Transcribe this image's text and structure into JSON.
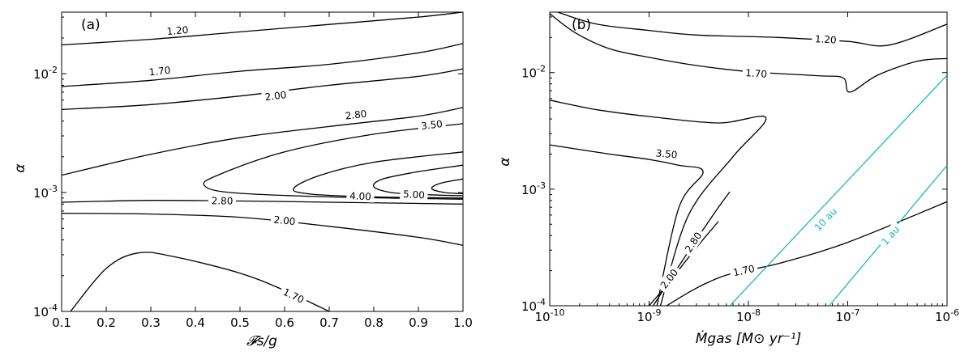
{
  "chart_data": [
    {
      "type": "line",
      "panel_label": "(a)",
      "xlabel": "𝓕s/g",
      "ylabel": "α",
      "x_scale": "linear",
      "y_scale": "log",
      "xlim": [
        0.1,
        1.0
      ],
      "ylim": [
        0.0001,
        0.033
      ],
      "x_ticks": [
        "0.1",
        "0.2",
        "0.3",
        "0.4",
        "0.5",
        "0.6",
        "0.7",
        "0.8",
        "0.9",
        "1.0"
      ],
      "y_ticks": [
        "10^-4",
        "10^-3",
        "10^-2"
      ],
      "series": [
        {
          "name": "1.20",
          "color": "#000000",
          "x": [
            0.1,
            0.3,
            0.5,
            0.7,
            0.9,
            1.0
          ],
          "y": [
            0.0175,
            0.0195,
            0.0225,
            0.026,
            0.03,
            0.033
          ],
          "label_at": [
            0.36,
            0.023
          ]
        },
        {
          "name": "1.70",
          "color": "#000000",
          "x": [
            0.1,
            0.3,
            0.5,
            0.7,
            0.9,
            1.0
          ],
          "y": [
            0.0078,
            0.0088,
            0.0105,
            0.012,
            0.015,
            0.018
          ],
          "label_at": [
            0.32,
            0.0105
          ]
        },
        {
          "name": "2.00",
          "color": "#000000",
          "x": [
            0.1,
            0.3,
            0.5,
            0.7,
            0.9,
            1.0
          ],
          "y": [
            0.005,
            0.0055,
            0.0065,
            0.008,
            0.0095,
            0.011
          ],
          "label_at": [
            0.58,
            0.0065
          ]
        },
        {
          "name": "2.80",
          "color": "#000000",
          "x": [
            0.1,
            0.3,
            0.5,
            0.7,
            0.9,
            1.0
          ],
          "y": [
            0.0014,
            0.0021,
            0.0029,
            0.0036,
            0.0044,
            0.0052
          ],
          "label_at": [
            0.76,
            0.0045
          ]
        },
        {
          "name": "3.50",
          "color": "#000000",
          "x": [
            1.0,
            0.8,
            0.6,
            0.45,
            0.42,
            0.48,
            0.7,
            1.0
          ],
          "y": [
            0.0038,
            0.0031,
            0.0022,
            0.0014,
            0.00115,
            0.001,
            0.00092,
            0.00088
          ],
          "label_at": [
            0.93,
            0.0037
          ]
        },
        {
          "name": "2.80",
          "color": "#000000",
          "x": [
            0.1,
            0.3,
            0.5,
            0.7,
            0.9,
            1.0
          ],
          "y": [
            0.00083,
            0.00086,
            0.00085,
            0.00083,
            0.00081,
            0.0008
          ],
          "label_at": [
            0.46,
            0.00085
          ]
        },
        {
          "name": "4.00",
          "color": "#000000",
          "x": [
            1.0,
            0.8,
            0.68,
            0.62,
            0.66,
            0.8,
            1.0
          ],
          "y": [
            0.0022,
            0.0018,
            0.0014,
            0.00108,
            0.00097,
            0.00092,
            0.0009
          ],
          "label_at": [
            0.77,
            0.00093
          ]
        },
        {
          "name": "5.00",
          "color": "#000000",
          "x": [
            1.0,
            0.9,
            0.82,
            0.8,
            0.84,
            0.92,
            1.0
          ],
          "y": [
            0.0017,
            0.0015,
            0.0013,
            0.00112,
            0.001,
            0.00096,
            0.00094
          ],
          "label_at": [
            0.89,
            0.00096
          ]
        },
        {
          "name": "",
          "color": "#000000",
          "x": [
            1.0,
            0.95,
            0.93,
            0.96,
            1.0
          ],
          "y": [
            0.0013,
            0.0012,
            0.00108,
            0.001,
            0.00098
          ]
        },
        {
          "name": "2.00",
          "color": "#000000",
          "x": [
            0.1,
            0.3,
            0.5,
            0.7,
            0.9,
            1.0
          ],
          "y": [
            0.00067,
            0.00066,
            0.00062,
            0.00052,
            0.00042,
            0.00036
          ],
          "label_at": [
            0.6,
            0.00058
          ]
        },
        {
          "name": "1.70",
          "color": "#000000",
          "x": [
            0.12,
            0.2,
            0.27,
            0.35,
            0.5,
            0.6,
            0.7
          ],
          "y": [
            0.0001,
            0.00023,
            0.00031,
            0.00029,
            0.00021,
            0.00015,
            0.0001
          ],
          "label_at": [
            0.62,
            0.000135
          ]
        }
      ]
    },
    {
      "type": "line",
      "panel_label": "(b)",
      "xlabel": "Ṁgas [M⊙ yr⁻¹]",
      "ylabel": "α",
      "x_scale": "log",
      "y_scale": "log",
      "xlim": [
        1e-10,
        1e-06
      ],
      "ylim": [
        0.0001,
        0.033
      ],
      "x_ticks": [
        "10^-10",
        "10^-9",
        "10^-8",
        "10^-7",
        "10^-6"
      ],
      "y_ticks": [
        "10^-4",
        "10^-3",
        "10^-2"
      ],
      "series": [
        {
          "name": "1.20",
          "color": "#000000",
          "x": [
            1.2e-10,
            3e-10,
            1e-09,
            3e-09,
            2e-08,
            1e-07,
            2.6e-07,
            1e-06
          ],
          "y": [
            0.033,
            0.026,
            0.023,
            0.021,
            0.02,
            0.0185,
            0.0172,
            0.026
          ],
          "label_at": [
            6e-08,
            0.0192
          ]
        },
        {
          "name": "1.70",
          "color": "#000000",
          "x": [
            1e-10,
            1.8e-10,
            4e-10,
            1e-09,
            3e-09,
            1e-08,
            5e-08,
            9e-08,
            1.05e-07,
            2e-07,
            5e-07,
            1e-06
          ],
          "y": [
            0.032,
            0.022,
            0.016,
            0.0135,
            0.0115,
            0.0102,
            0.0094,
            0.009,
            0.0068,
            0.0095,
            0.0125,
            0.0132
          ],
          "label_at": [
            1.2e-08,
            0.0098
          ]
        },
        {
          "name": "3.50",
          "color": "#000000",
          "x": [
            1e-10,
            3e-10,
            1e-09,
            5e-09,
            1.5e-08,
            7e-09,
            2.5e-09,
            1.3e-09
          ],
          "y": [
            0.0058,
            0.0048,
            0.0042,
            0.0037,
            0.0041,
            0.0019,
            0.0006,
            0.0001
          ],
          "label_at": [
            1.5e-09,
            0.002
          ]
        },
        {
          "name": "",
          "color": "#000000",
          "x": [
            1e-10,
            4e-10,
            1e-09,
            2e-09,
            3.5e-09,
            2e-09,
            1.2e-09
          ],
          "y": [
            0.0024,
            0.002,
            0.0018,
            0.0016,
            0.0014,
            0.0007,
            0.0001
          ]
        },
        {
          "name": "2.80",
          "color": "#000000",
          "x": [
            1.1e-09,
            2e-09,
            3.5e-09,
            5e-09,
            6.5e-09
          ],
          "y": [
            0.0001,
            0.00022,
            0.00045,
            0.0007,
            0.00095
          ],
          "label_at": [
            2.8e-09,
            0.00035
          ]
        },
        {
          "name": "2.00",
          "color": "#000000",
          "x": [
            1e-09,
            1.6e-09,
            2.5e-09,
            3.5e-09,
            5e-09
          ],
          "y": [
            0.0001,
            0.00016,
            0.00026,
            0.00037,
            0.00053
          ],
          "label_at": [
            1.6e-09,
            0.00017
          ]
        },
        {
          "name": "1.70",
          "color": "#000000",
          "x": [
            1.5e-09,
            2.5e-09,
            4e-09,
            7e-09,
            2e-08,
            1e-07,
            1e-06
          ],
          "y": [
            0.0001,
            0.00013,
            0.00016,
            0.00019,
            0.00023,
            0.00035,
            0.00078
          ],
          "label_at": [
            9e-09,
            0.0002
          ]
        },
        {
          "name": "10 au",
          "color": "#17b8c8",
          "x": [
            6.5e-09,
            1e-06
          ],
          "y": [
            0.0001,
            0.0095
          ],
          "label_at": [
            6e-08,
            0.00055
          ]
        },
        {
          "name": "1 au",
          "color": "#17b8c8",
          "x": [
            6.5e-08,
            1e-06
          ],
          "y": [
            0.0001,
            0.0016
          ],
          "label_at": [
            2.7e-07,
            0.0004
          ]
        }
      ]
    }
  ]
}
